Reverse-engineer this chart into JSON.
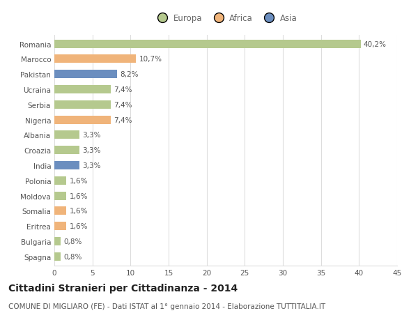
{
  "categories": [
    "Romania",
    "Marocco",
    "Pakistan",
    "Ucraina",
    "Serbia",
    "Nigeria",
    "Albania",
    "Croazia",
    "India",
    "Polonia",
    "Moldova",
    "Somalia",
    "Eritrea",
    "Bulgaria",
    "Spagna"
  ],
  "values": [
    40.2,
    10.7,
    8.2,
    7.4,
    7.4,
    7.4,
    3.3,
    3.3,
    3.3,
    1.6,
    1.6,
    1.6,
    1.6,
    0.8,
    0.8
  ],
  "labels": [
    "40,2%",
    "10,7%",
    "8,2%",
    "7,4%",
    "7,4%",
    "7,4%",
    "3,3%",
    "3,3%",
    "3,3%",
    "1,6%",
    "1,6%",
    "1,6%",
    "1,6%",
    "0,8%",
    "0,8%"
  ],
  "continents": [
    "Europa",
    "Africa",
    "Asia",
    "Europa",
    "Europa",
    "Africa",
    "Europa",
    "Europa",
    "Asia",
    "Europa",
    "Europa",
    "Africa",
    "Africa",
    "Europa",
    "Europa"
  ],
  "continent_colors": {
    "Europa": "#b5c98e",
    "Africa": "#f0b47a",
    "Asia": "#6b8ebf"
  },
  "legend_labels": [
    "Europa",
    "Africa",
    "Asia"
  ],
  "legend_colors": [
    "#b5c98e",
    "#f0b47a",
    "#6b8ebf"
  ],
  "title": "Cittadini Stranieri per Cittadinanza - 2014",
  "subtitle": "COMUNE DI MIGLIARO (FE) - Dati ISTAT al 1° gennaio 2014 - Elaborazione TUTTITALIA.IT",
  "xlim": [
    0,
    45
  ],
  "xticks": [
    0,
    5,
    10,
    15,
    20,
    25,
    30,
    35,
    40,
    45
  ],
  "background_color": "#ffffff",
  "grid_color": "#dddddd",
  "bar_height": 0.55,
  "title_fontsize": 10,
  "subtitle_fontsize": 7.5,
  "label_fontsize": 7.5,
  "tick_fontsize": 7.5,
  "legend_fontsize": 8.5
}
